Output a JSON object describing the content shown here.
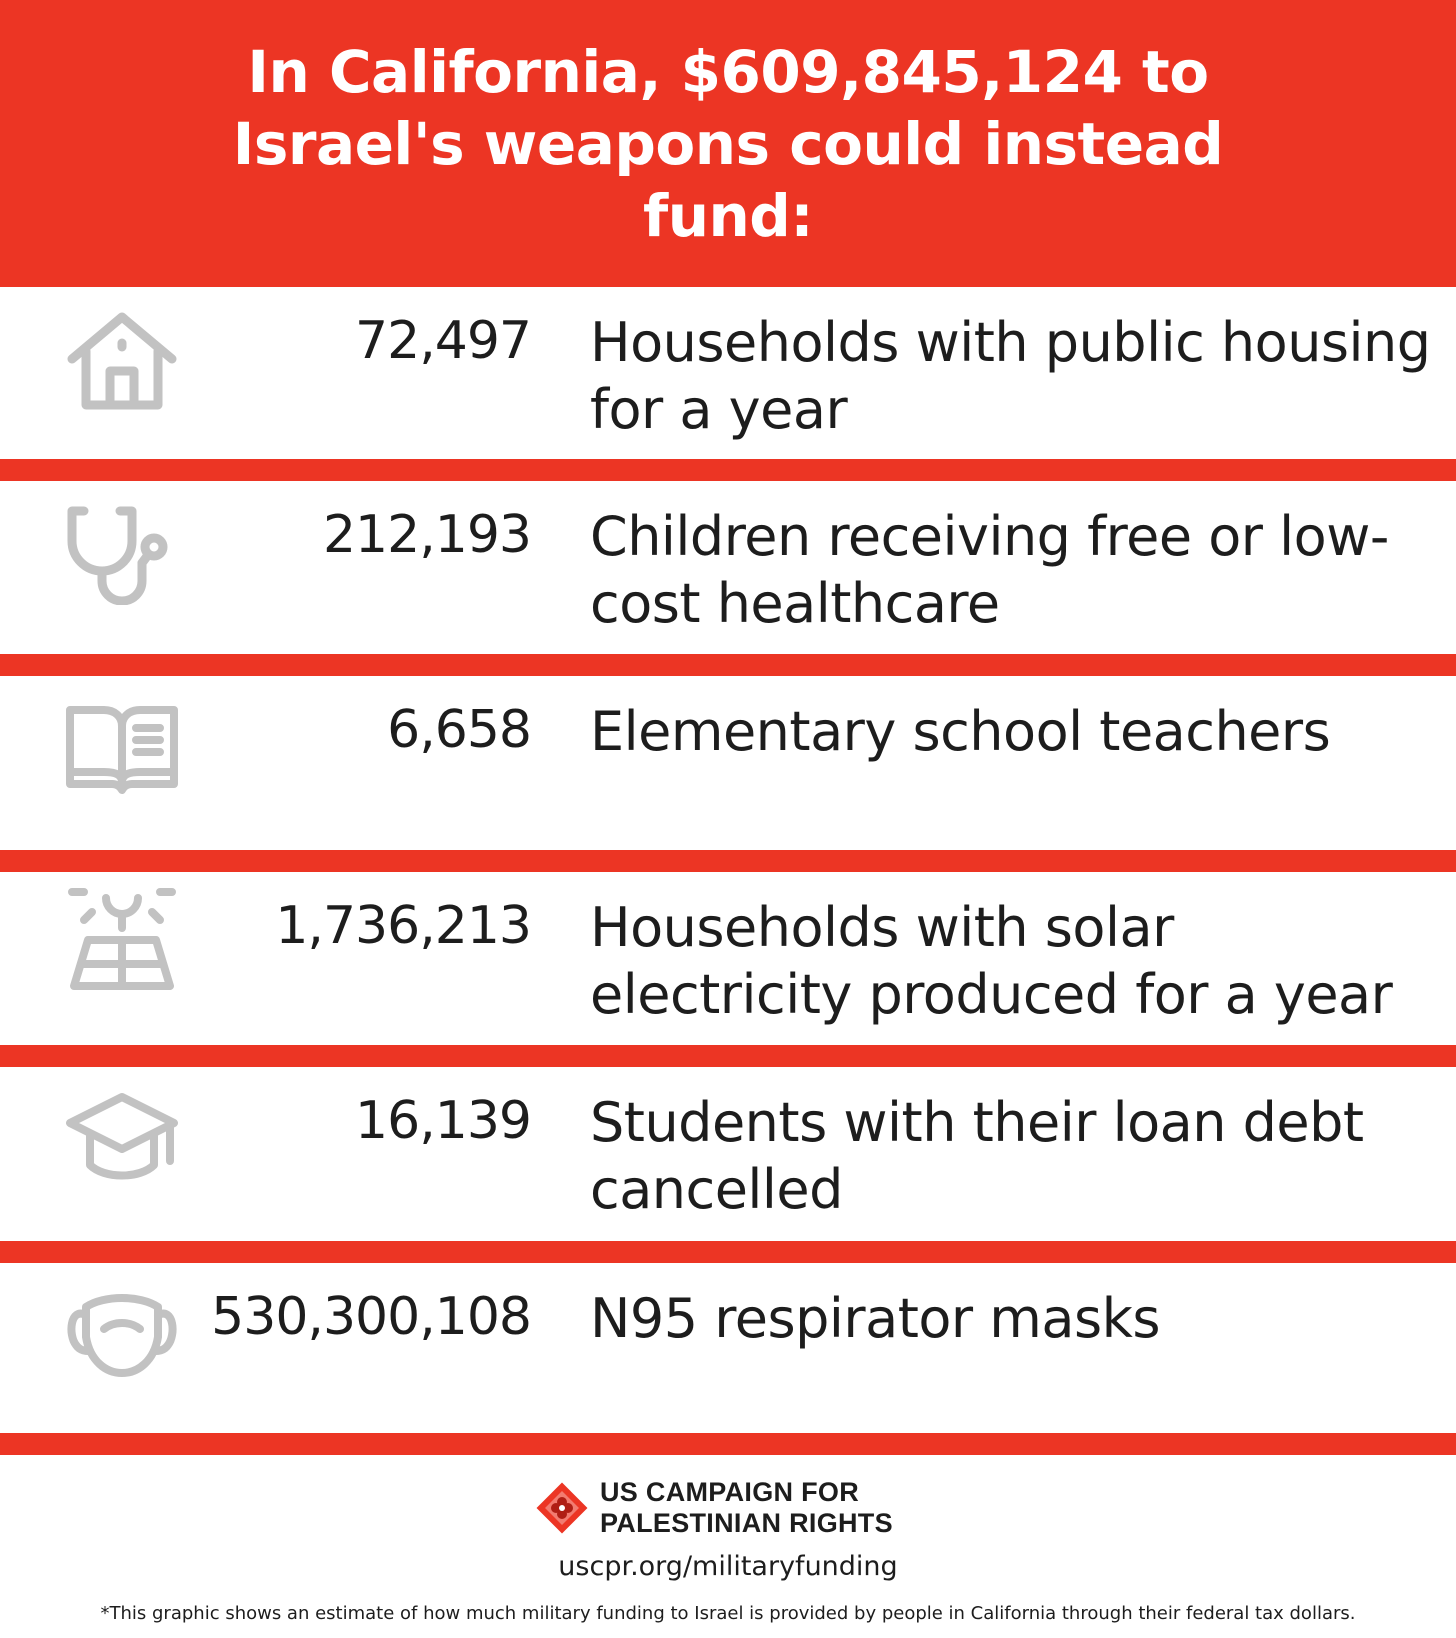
{
  "header": {
    "title": "In California, $609,845,124 to Israel's weapons could instead fund:"
  },
  "rows": [
    {
      "icon": "house-icon",
      "value": "72,497",
      "description": "Households with public housing for a year"
    },
    {
      "icon": "stethoscope-icon",
      "value": "212,193",
      "description": "Children receiving free or low-cost healthcare"
    },
    {
      "icon": "book-icon",
      "value": "6,658",
      "description": "Elementary school teachers"
    },
    {
      "icon": "solar-panel-icon",
      "value": "1,736,213",
      "description": "Households with solar electricity produced for a year"
    },
    {
      "icon": "graduation-cap-icon",
      "value": "16,139",
      "description": "Students with their loan debt cancelled"
    },
    {
      "icon": "face-mask-icon",
      "value": "530,300,108",
      "description": "N95 respirator masks"
    }
  ],
  "footer": {
    "logo_line1": "US CAMPAIGN FOR",
    "logo_line2": "PALESTINIAN RIGHTS",
    "url": "uscpr.org/militaryfunding",
    "note": "*This graphic shows an estimate of how much military funding to Israel is provided by people in California through their federal tax dollars."
  },
  "colors": {
    "accent": "#ec3524",
    "icon_gray": "#c2c2c2",
    "text": "#1d1d1d"
  }
}
